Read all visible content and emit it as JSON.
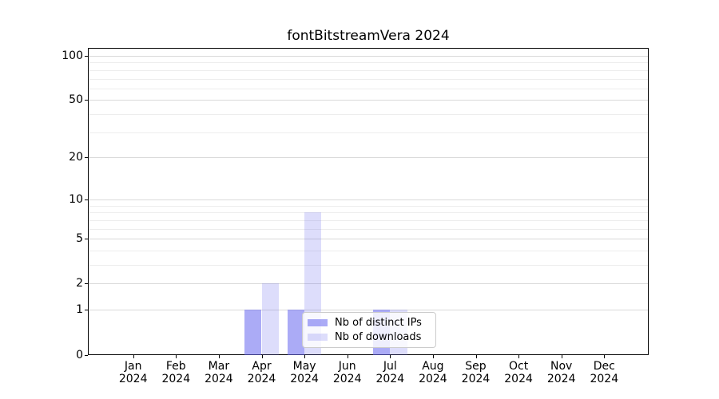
{
  "title": "fontBitstreamVera 2024",
  "chart_data": {
    "type": "bar",
    "title": "fontBitstreamVera 2024",
    "categories": [
      "Jan",
      "Feb",
      "Mar",
      "Apr",
      "May",
      "Jun",
      "Jul",
      "Aug",
      "Sep",
      "Oct",
      "Nov",
      "Dec"
    ],
    "year_label": "2024",
    "series": [
      {
        "name": "Nb of distinct IPs",
        "color": "#6666ee",
        "alpha": 0.55,
        "values": [
          0,
          0,
          0,
          1,
          1,
          0,
          1,
          0,
          0,
          0,
          0,
          0
        ]
      },
      {
        "name": "Nb of downloads",
        "color": "#6666ee",
        "alpha": 0.22,
        "values": [
          0,
          0,
          0,
          2,
          8,
          0,
          1,
          0,
          0,
          0,
          0,
          0
        ]
      }
    ],
    "xlabel": "",
    "ylabel": "",
    "yscale": "log1p",
    "yticks": [
      0,
      1,
      2,
      5,
      10,
      20,
      50,
      100
    ],
    "minor_yticks": [
      3,
      4,
      6,
      7,
      8,
      9,
      30,
      40,
      60,
      70,
      80,
      90
    ],
    "ylim": [
      0,
      111
    ],
    "grid": "both",
    "legend_position": "lower-right-of-center",
    "grid_major_color": "#d9d9d9",
    "grid_minor_color": "#ededed",
    "axis_color": "#000000"
  }
}
